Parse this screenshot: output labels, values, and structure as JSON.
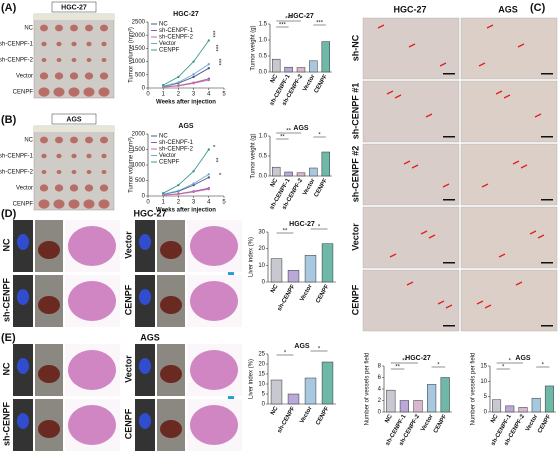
{
  "figure": {
    "A": {
      "label": "(A)",
      "photo_title": "HGC-27",
      "rows": [
        "NC",
        "sh-CENPF-1",
        "sh-CENPF-2",
        "Vector",
        "CENPF"
      ]
    },
    "B": {
      "label": "(B)",
      "photo_title": "AGS",
      "rows": [
        "NC",
        "sh-CENPF-1",
        "sh-CENPF-2",
        "Vector",
        "CENPF"
      ]
    },
    "C": {
      "label": "(C)",
      "columns": [
        "HGC-27",
        "AGS"
      ],
      "rows": [
        "sh-NC",
        "sh-CENPF #1",
        "sh-CENPF #2",
        "Vector",
        "CENPF"
      ]
    },
    "D": {
      "label": "(D)",
      "title": "HGC-27",
      "groups": [
        "NC",
        "sh-CENPF",
        "Vector",
        "CENPF"
      ]
    },
    "E": {
      "label": "(E)",
      "title": "AGS",
      "groups": [
        "NC",
        "sh-CENPF",
        "Vector",
        "CENPF"
      ]
    }
  },
  "chart_data": [
    {
      "type": "line",
      "title": "HGC-27",
      "x_label": "Weeks after injection",
      "y_label": "Tumor volume (mm³)",
      "x": [
        1,
        2,
        3,
        4
      ],
      "xlim": [
        0,
        5
      ],
      "xticks": [
        0,
        1,
        2,
        3,
        4,
        5
      ],
      "ylim": [
        0,
        2500
      ],
      "yticks": [
        0,
        500,
        1000,
        1500,
        2000,
        2500
      ],
      "series": [
        {
          "name": "NC",
          "color": "#4a5a7a",
          "values": [
            60,
            180,
            420,
            750
          ]
        },
        {
          "name": "sh-CENPF-1",
          "color": "#8a5fb0",
          "values": [
            40,
            90,
            200,
            350
          ]
        },
        {
          "name": "sh-CENPF-2",
          "color": "#d06aa0",
          "values": [
            35,
            80,
            180,
            300
          ]
        },
        {
          "name": "Vector",
          "color": "#6fa8d8",
          "values": [
            70,
            210,
            520,
            900
          ]
        },
        {
          "name": "CENPF",
          "color": "#3a9a8a",
          "values": [
            110,
            420,
            1000,
            1800
          ]
        }
      ],
      "annotations": [
        "***",
        "***",
        "***"
      ]
    },
    {
      "type": "bar",
      "title": "HGC-27",
      "y_label": "Tumor weight (g)",
      "categories": [
        "NC",
        "sh-CENPF-1",
        "sh-CENPF-2",
        "Vector",
        "CENPF"
      ],
      "values": [
        0.4,
        0.15,
        0.14,
        0.35,
        0.95
      ],
      "colors": [
        "#c8c8d0",
        "#b9a8d8",
        "#d8b8d0",
        "#a8c8e0",
        "#6fb8a8"
      ],
      "ylim": [
        0,
        1.5
      ],
      "yticks": [
        {
          "value": 0,
          "label": "0.0"
        },
        0.5,
        {
          "value": 1,
          "label": "1.0"
        },
        1.5
      ],
      "annotations": [
        "***",
        "***",
        "***"
      ]
    },
    {
      "type": "line",
      "title": "AGS",
      "x_label": "Weeks after injection",
      "y_label": "Tumor volume (mm³)",
      "x": [
        1,
        2,
        3,
        4
      ],
      "xlim": [
        0,
        5
      ],
      "xticks": [
        0,
        1,
        2,
        3,
        4,
        5
      ],
      "ylim": [
        0,
        2000
      ],
      "yticks": [
        0,
        500,
        1000,
        1500,
        2000
      ],
      "series": [
        {
          "name": "NC",
          "color": "#4a5a7a",
          "values": [
            50,
            150,
            350,
            600
          ]
        },
        {
          "name": "sh-CENPF-1",
          "color": "#8a5fb0",
          "values": [
            30,
            70,
            150,
            250
          ]
        },
        {
          "name": "sh-CENPF-2",
          "color": "#d06aa0",
          "values": [
            30,
            60,
            130,
            220
          ]
        },
        {
          "name": "Vector",
          "color": "#6fa8d8",
          "values": [
            60,
            170,
            400,
            700
          ]
        },
        {
          "name": "CENPF",
          "color": "#3a9a8a",
          "values": [
            90,
            350,
            800,
            1500
          ]
        }
      ],
      "annotations": [
        "*",
        "**",
        "*"
      ]
    },
    {
      "type": "bar",
      "title": "AGS",
      "y_label": "Tumor weight (g)",
      "categories": [
        "NC",
        "sh-CENPF-1",
        "sh-CENPF-2",
        "Vector",
        "CENPF"
      ],
      "values": [
        0.22,
        0.1,
        0.08,
        0.2,
        0.6
      ],
      "colors": [
        "#c8c8d0",
        "#b9a8d8",
        "#d8b8d0",
        "#a8c8e0",
        "#6fb8a8"
      ],
      "ylim": [
        0,
        1
      ],
      "yticks": [
        {
          "value": 0,
          "label": "0.0"
        },
        0.5,
        {
          "value": 1,
          "label": "1.0"
        }
      ],
      "annotations": [
        "**",
        "**",
        "*"
      ]
    },
    {
      "type": "bar",
      "title": "HGC-27",
      "y_label": "Liver index (%)",
      "categories": [
        "NC",
        "sh-CENPF",
        "Vector",
        "CENPF"
      ],
      "values": [
        14,
        7,
        16,
        23
      ],
      "colors": [
        "#c8c8d0",
        "#b9a8d8",
        "#a8c8e0",
        "#6fb8a8"
      ],
      "ylim": [
        0,
        30
      ],
      "yticks": [
        0,
        10,
        20,
        30
      ],
      "annotations": [
        "**",
        "*"
      ]
    },
    {
      "type": "bar",
      "title": "AGS",
      "y_label": "Liver index (%)",
      "categories": [
        "NC",
        "sh-CENPF",
        "Vector",
        "CENPF"
      ],
      "values": [
        12,
        5,
        13,
        21
      ],
      "colors": [
        "#c8c8d0",
        "#b9a8d8",
        "#a8c8e0",
        "#6fb8a8"
      ],
      "ylim": [
        0,
        25
      ],
      "yticks": [
        0,
        5,
        10,
        15,
        20,
        25
      ],
      "annotations": [
        "*",
        "*"
      ]
    },
    {
      "type": "bar",
      "title": "HGC-27",
      "y_label": "Number of vessels per field",
      "categories": [
        "NC",
        "sh-CENPF-1",
        "sh-CENPF-2",
        "Vector",
        "CENPF"
      ],
      "values": [
        3.8,
        2,
        2,
        4.8,
        6
      ],
      "colors": [
        "#c8c8d0",
        "#b9a8d8",
        "#d8b8d0",
        "#a8c8e0",
        "#6fb8a8"
      ],
      "ylim": [
        0,
        8
      ],
      "yticks": [
        0,
        2,
        4,
        6,
        8
      ],
      "annotations": [
        "**",
        "**",
        "*"
      ]
    },
    {
      "type": "bar",
      "title": "AGS",
      "y_label": "Number of vessels per field",
      "categories": [
        "NC",
        "sh-CENPF-1",
        "sh-CENPF-2",
        "Vector",
        "CENPF"
      ],
      "values": [
        4,
        2,
        1.5,
        4.5,
        8.5
      ],
      "colors": [
        "#c8c8d0",
        "#b9a8d8",
        "#d8b8d0",
        "#a8c8e0",
        "#6fb8a8"
      ],
      "ylim": [
        0,
        15
      ],
      "yticks": [
        0,
        5,
        10,
        15
      ],
      "annotations": [
        "*",
        "*",
        "*"
      ]
    }
  ]
}
